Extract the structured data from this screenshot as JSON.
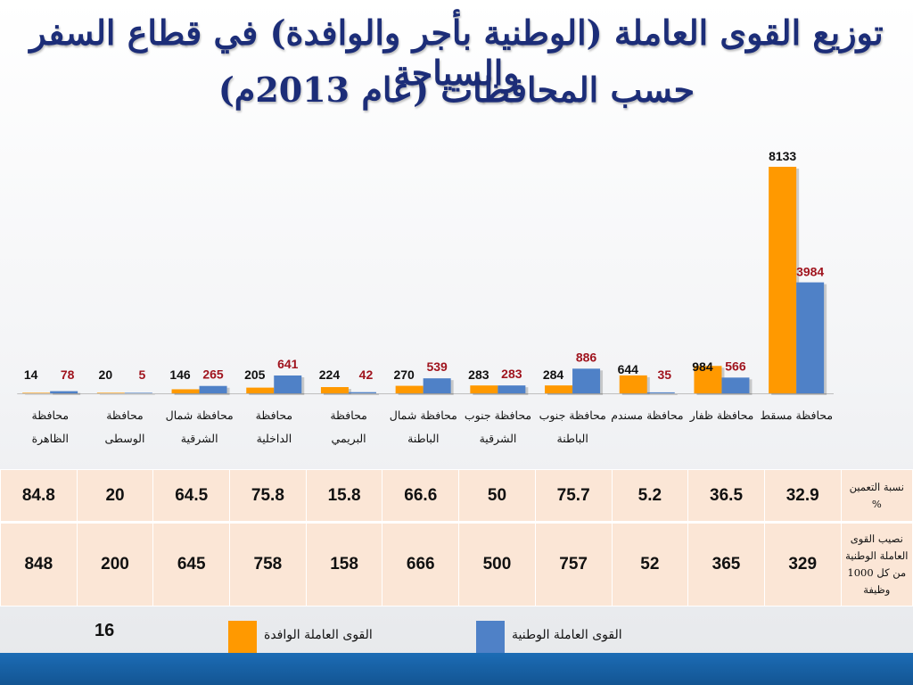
{
  "title_line1": "توزيع القوى العاملة (الوطنية بأجر والوافدة)  في قطاع السفر والسياحة",
  "title_line2": "حسب المحافظات (عام 2013م)",
  "chart_data": {
    "type": "bar",
    "categories": [
      "محافظة مسقط",
      "محافظة ظفار",
      "محافظة مسندم",
      "محافظة جنوب الباطنة",
      "محافظة جنوب الشرقية",
      "محافظة شمال الباطنة",
      "محافظة البريمي",
      "محافظة الداخلية",
      "محافظة شمال الشرقية",
      "محافظة الوسطى",
      "محافظة الظاهرة"
    ],
    "series": [
      {
        "name": "القوى العاملة الوافدة",
        "color": "#ff9900",
        "label_color": "#111111",
        "values": [
          8133,
          984,
          644,
          284,
          283,
          270,
          224,
          205,
          146,
          20,
          14
        ]
      },
      {
        "name": "القوى العاملة الوطنية",
        "color": "#4f81c7",
        "label_color": "#a0141e",
        "values": [
          3984,
          566,
          35,
          886,
          283,
          539,
          42,
          641,
          265,
          5,
          78
        ]
      }
    ],
    "ylim": [
      0,
      8133
    ],
    "grid": false,
    "legend": "bottom"
  },
  "table": {
    "row1": {
      "label": "نسبة التعمين %",
      "values": [
        "32.9",
        "36.5",
        "5.2",
        "75.7",
        "50",
        "66.6",
        "15.8",
        "75.8",
        "64.5",
        "20",
        "84.8"
      ]
    },
    "row2": {
      "label_lines": [
        "نصيب القوى",
        "العاملة الوطنية",
        "من كل 1000",
        "وظيفة"
      ],
      "values": [
        "329",
        "365",
        "52",
        "757",
        "500",
        "666",
        "158",
        "758",
        "645",
        "200",
        "848"
      ]
    }
  },
  "page_number": "16"
}
